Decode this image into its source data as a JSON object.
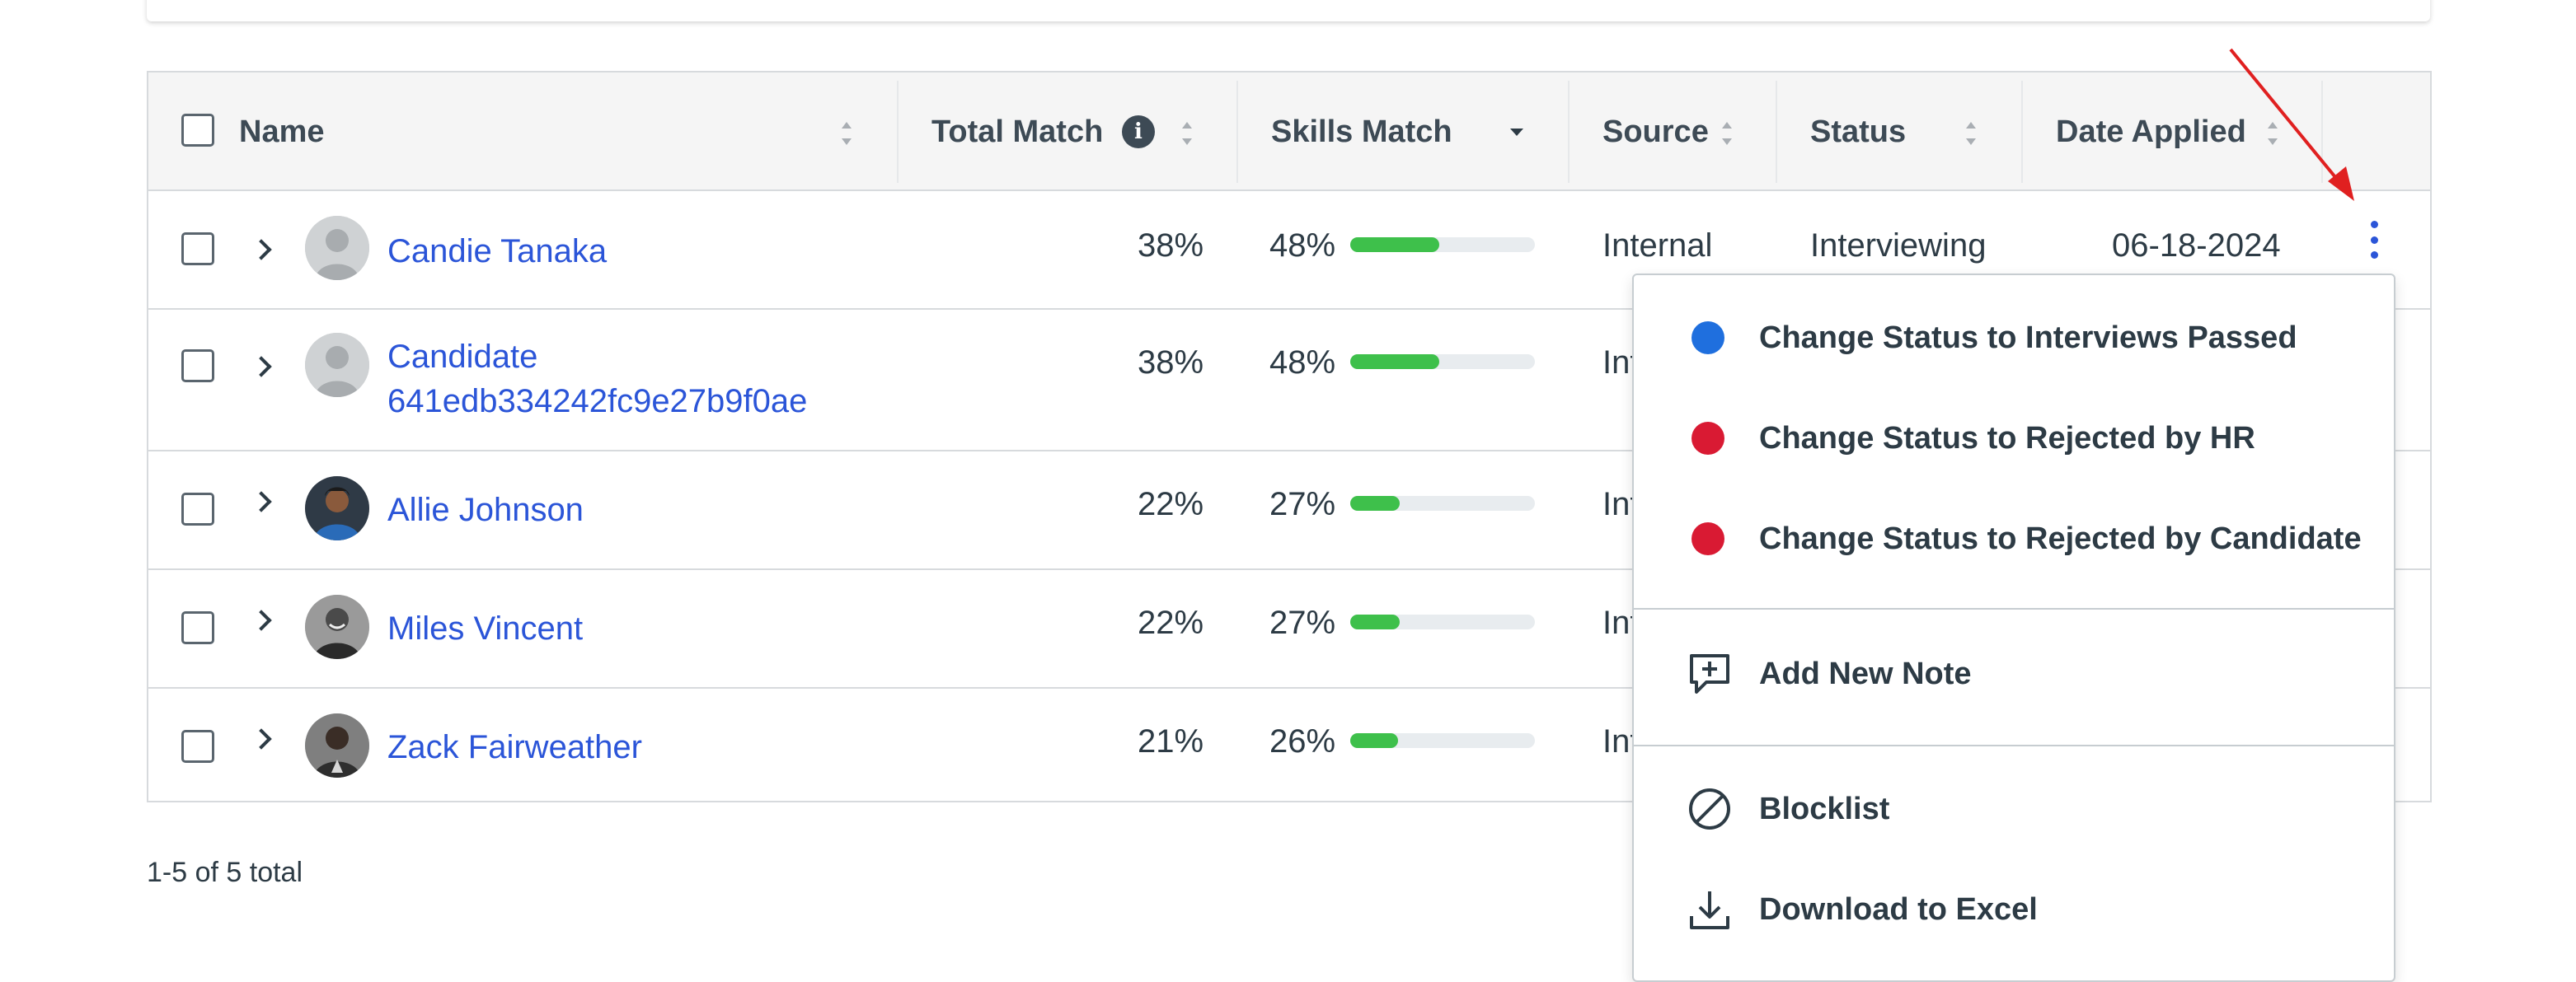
{
  "table": {
    "headers": {
      "name": "Name",
      "total_match": "Total Match",
      "skills_match": "Skills Match",
      "source": "Source",
      "status": "Status",
      "date_applied": "Date Applied"
    },
    "rows": [
      {
        "name_line1": "Candie Tanaka",
        "name_line2": "",
        "total_match": "38%",
        "skills_match": "48%",
        "skills_fraction": 0.48,
        "source": "Internal",
        "status": "Interviewing",
        "date_applied": "06-18-2024"
      },
      {
        "name_line1": "Candidate",
        "name_line2": "641edb334242fc9e27b9f0ae",
        "total_match": "38%",
        "skills_match": "48%",
        "skills_fraction": 0.48,
        "source": "Int",
        "status": "",
        "date_applied": ""
      },
      {
        "name_line1": "Allie Johnson",
        "name_line2": "",
        "total_match": "22%",
        "skills_match": "27%",
        "skills_fraction": 0.27,
        "source": "Int",
        "status": "",
        "date_applied": ""
      },
      {
        "name_line1": "Miles Vincent",
        "name_line2": "",
        "total_match": "22%",
        "skills_match": "27%",
        "skills_fraction": 0.27,
        "source": "Int",
        "status": "",
        "date_applied": ""
      },
      {
        "name_line1": "Zack Fairweather",
        "name_line2": "",
        "total_match": "21%",
        "skills_match": "26%",
        "skills_fraction": 0.26,
        "source": "Int",
        "status": "",
        "date_applied": ""
      }
    ]
  },
  "footer": {
    "total_text": "1-5 of 5 total"
  },
  "menu": {
    "status_items": [
      {
        "label": "Change Status to Interviews Passed",
        "color": "#1f6fde"
      },
      {
        "label": "Change Status to Rejected by HR",
        "color": "#d91a33"
      },
      {
        "label": "Change Status to Rejected by Candidate",
        "color": "#d91a33"
      }
    ],
    "add_note": "Add New Note",
    "blocklist": "Blocklist",
    "download": "Download to Excel"
  },
  "colors": {
    "link": "#2b55d8",
    "bar_fill": "#3ec04b",
    "annotation_arrow": "#e02020"
  },
  "icons": {
    "info": "info-icon",
    "kebab": "kebab-menu-icon",
    "note": "add-note-icon",
    "blocklist": "blocklist-icon",
    "download": "download-icon"
  }
}
